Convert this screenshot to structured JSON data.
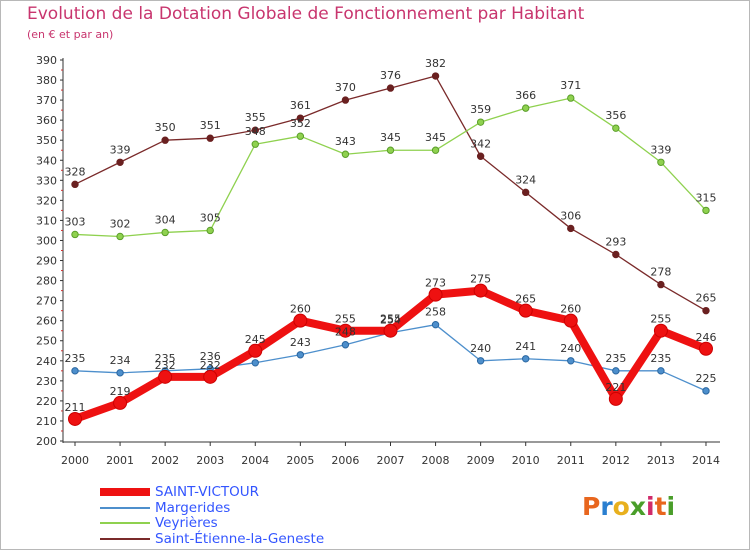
{
  "header": {
    "title": "Evolution de la Dotation Globale de Fonctionnement par Habitant",
    "subtitle": "(en € et par an)"
  },
  "logo": {
    "text": "Proxiti",
    "colors": [
      "#e8661e",
      "#2a7fd0",
      "#e8b01e",
      "#4a9e2a",
      "#d02a6a",
      "#e8661e",
      "#4a9e2a"
    ]
  },
  "chart_data": {
    "type": "line",
    "x": [
      "2000",
      "2001",
      "2002",
      "2003",
      "2004",
      "2005",
      "2006",
      "2007",
      "2008",
      "2009",
      "2010",
      "2011",
      "2012",
      "2013",
      "2014"
    ],
    "ylim": [
      200,
      390
    ],
    "yticks": [
      200,
      210,
      220,
      230,
      240,
      250,
      260,
      270,
      280,
      290,
      300,
      310,
      320,
      330,
      340,
      350,
      360,
      370,
      380,
      390
    ],
    "grid": false,
    "legend_position": "bottom-left",
    "series": [
      {
        "name": "Saint-Étienne-la-Geneste",
        "color": "#7a2a2a",
        "values": [
          328,
          339,
          350,
          351,
          355,
          361,
          370,
          376,
          382,
          342,
          324,
          306,
          293,
          278,
          265
        ]
      },
      {
        "name": "Veyrières",
        "color": "#8fd14f",
        "values": [
          303,
          302,
          304,
          305,
          348,
          352,
          343,
          345,
          345,
          359,
          366,
          371,
          356,
          339,
          315
        ]
      },
      {
        "name": "Margerides",
        "color": "#4d8fcc",
        "values": [
          235,
          234,
          235,
          236,
          239,
          243,
          248,
          254,
          258,
          240,
          241,
          240,
          235,
          235,
          225
        ]
      },
      {
        "name": "SAINT-VICTOUR",
        "color": "#ee1111",
        "values": [
          211,
          219,
          232,
          232,
          245,
          260,
          255,
          255,
          273,
          275,
          265,
          260,
          221,
          255,
          246
        ]
      }
    ],
    "labels_shown": {
      "Margerides": [
        "235",
        "234",
        "235",
        "236",
        null,
        "243",
        "248",
        "254",
        "258",
        "240",
        "241",
        "240",
        "235",
        "235",
        "225"
      ],
      "Veyrières": [
        "303",
        "302",
        "304",
        "305",
        "348",
        "352",
        "343",
        "345",
        "345",
        "359",
        "366",
        "371",
        "356",
        "339",
        "315"
      ],
      "Saint-Étienne-la-Geneste": [
        "328",
        "339",
        "350",
        "351",
        "355",
        "361",
        "370",
        "376",
        "382",
        "342",
        "324",
        "306",
        "293",
        "278",
        "265"
      ],
      "SAINT-VICTOUR": [
        "211",
        "219",
        "232",
        "232",
        "245",
        "260",
        "255",
        "255",
        "273",
        "275",
        "265",
        "260",
        "221",
        "255",
        "246"
      ]
    }
  },
  "legend": [
    {
      "name": "SAINT-VICTOUR",
      "color": "#ee1111",
      "thick": true
    },
    {
      "name": "Margerides",
      "color": "#4d8fcc"
    },
    {
      "name": "Veyrières",
      "color": "#8fd14f"
    },
    {
      "name": "Saint-Étienne-la-Geneste",
      "color": "#7a2a2a"
    }
  ]
}
